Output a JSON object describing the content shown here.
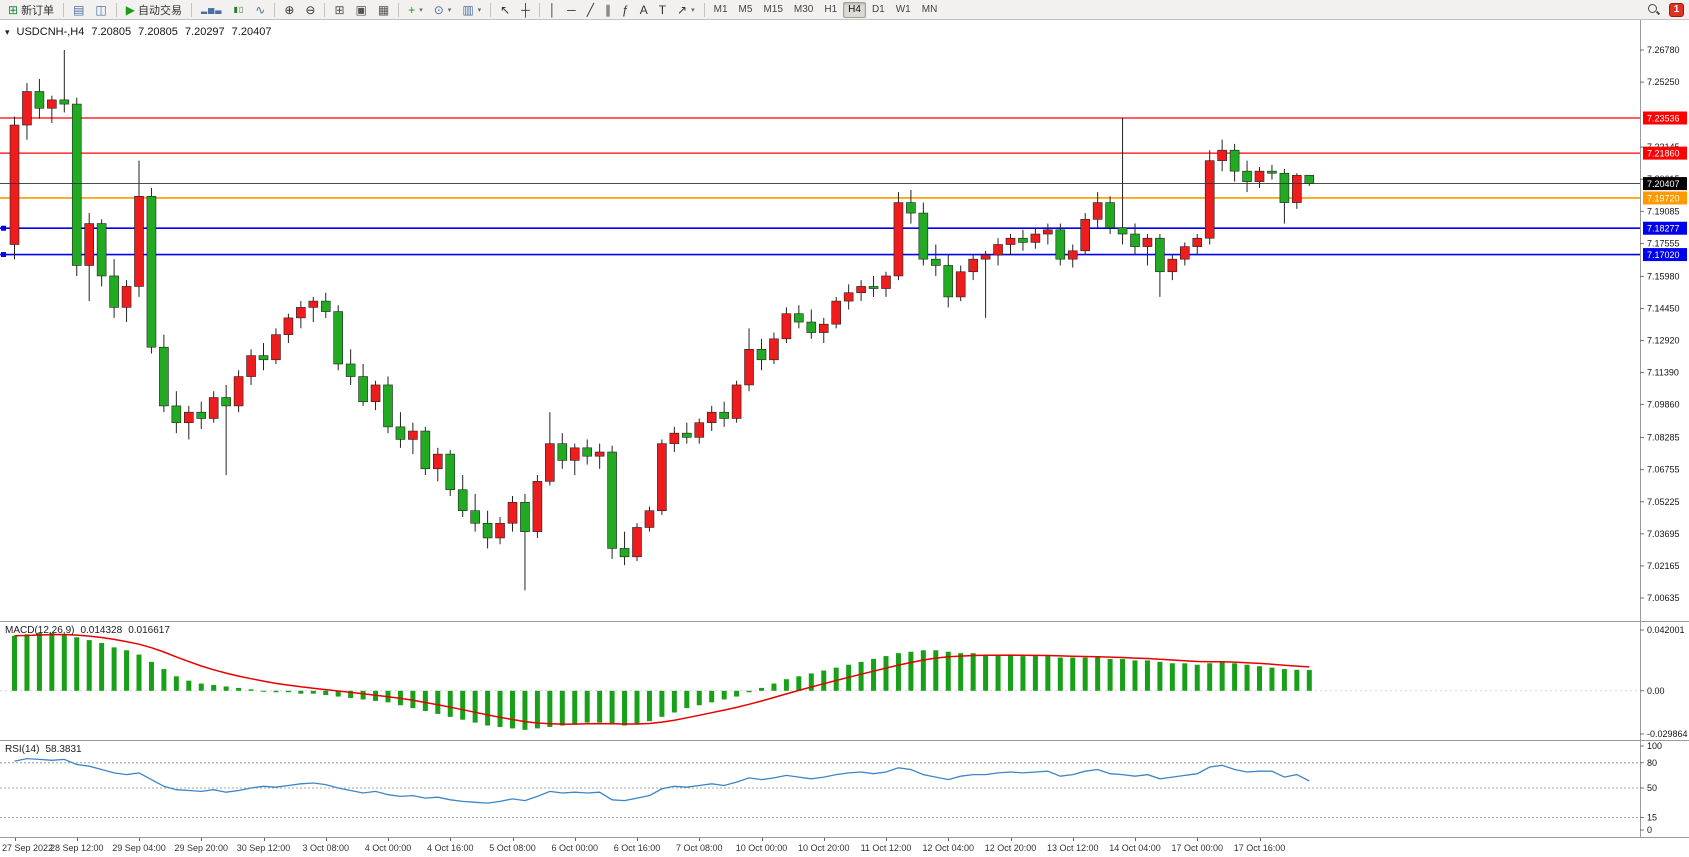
{
  "toolbar": {
    "items": [
      {
        "t": "btn",
        "name": "new-order-button",
        "icon": "new-order-icon",
        "g": "⊞",
        "c": "#1e8e3e",
        "label": "新订单"
      },
      {
        "t": "sep"
      },
      {
        "t": "btn",
        "name": "print-button",
        "icon": "printer-icon",
        "g": "▤",
        "c": "#4a6fa5"
      },
      {
        "t": "btn",
        "name": "print-preview-button",
        "icon": "preview-icon",
        "g": "◫",
        "c": "#4a6fa5"
      },
      {
        "t": "sep"
      },
      {
        "t": "btn",
        "name": "auto-trading-button",
        "icon": "play-icon",
        "g": "▶",
        "c": "#18a018",
        "label": "自动交易"
      },
      {
        "t": "sep"
      },
      {
        "t": "btn",
        "name": "bar-chart-button",
        "icon": "bar-chart-icon",
        "g": "▂▅▃",
        "c": "#4a6fa5",
        "small": true
      },
      {
        "t": "btn",
        "name": "candlestick-chart-button",
        "icon": "candlestick-icon",
        "g": "▮▯",
        "c": "#2a7d2a",
        "small": true
      },
      {
        "t": "btn",
        "name": "line-chart-button",
        "icon": "line-chart-icon",
        "g": "∿",
        "c": "#4a6fa5"
      },
      {
        "t": "sep"
      },
      {
        "t": "btn",
        "name": "zoom-in-button",
        "icon": "zoom-in-icon",
        "g": "⊕",
        "c": "#333333"
      },
      {
        "t": "btn",
        "name": "zoom-out-button",
        "icon": "zoom-out-icon",
        "g": "⊖",
        "c": "#333333"
      },
      {
        "t": "sep"
      },
      {
        "t": "btn",
        "name": "tile-windows-button",
        "icon": "tile-windows-icon",
        "g": "⊞",
        "c": "#555555"
      },
      {
        "t": "btn",
        "name": "cascade-windows-button",
        "icon": "cascade-windows-icon",
        "g": "▣",
        "c": "#555555"
      },
      {
        "t": "btn",
        "name": "arrange-windows-button",
        "icon": "arrange-icon",
        "g": "▦",
        "c": "#555555"
      },
      {
        "t": "sep"
      },
      {
        "t": "btn",
        "name": "new-chart-button",
        "icon": "plus-icon",
        "g": "+",
        "c": "#18a018",
        "dd": true
      },
      {
        "t": "btn",
        "name": "profiles-button",
        "icon": "clock-icon",
        "g": "⊙",
        "c": "#4a6fa5",
        "dd": true
      },
      {
        "t": "btn",
        "name": "templates-button",
        "icon": "template-icon",
        "g": "▥",
        "c": "#4a6fa5",
        "dd": true
      },
      {
        "t": "sep"
      },
      {
        "t": "btn",
        "name": "cursor-button",
        "icon": "cursor-icon",
        "g": "↖",
        "c": "#333333"
      },
      {
        "t": "btn",
        "name": "crosshair-button",
        "icon": "crosshair-icon",
        "g": "┼",
        "c": "#333333"
      },
      {
        "t": "sep"
      },
      {
        "t": "btn",
        "name": "vertical-line-button",
        "icon": "vertical-line-icon",
        "g": "│",
        "c": "#333333"
      },
      {
        "t": "btn",
        "name": "horizontal-line-button",
        "icon": "horizontal-line-icon",
        "g": "─",
        "c": "#333333"
      },
      {
        "t": "btn",
        "name": "trendline-button",
        "icon": "trendline-icon",
        "g": "╱",
        "c": "#333333"
      },
      {
        "t": "btn",
        "name": "channel-button",
        "icon": "channel-icon",
        "g": "∥",
        "c": "#333333"
      },
      {
        "t": "btn",
        "name": "fibonacci-button",
        "icon": "fibonacci-icon",
        "g": "ƒ",
        "c": "#333333"
      },
      {
        "t": "btn",
        "name": "text-button",
        "icon": "text-icon",
        "g": "A",
        "c": "#333333"
      },
      {
        "t": "btn",
        "name": "text-label-button",
        "icon": "label-icon",
        "g": "T",
        "c": "#333333"
      },
      {
        "t": "btn",
        "name": "arrows-button",
        "icon": "arrow-icon",
        "g": "↗",
        "c": "#333333",
        "dd": true
      },
      {
        "t": "sep"
      }
    ],
    "timeframes": [
      "M1",
      "M5",
      "M15",
      "M30",
      "H1",
      "H4",
      "D1",
      "W1",
      "MN"
    ],
    "active_timeframe": "H4",
    "search_icon": "search-icon",
    "notification_count": "1"
  },
  "chart": {
    "collapse_icon": "▾",
    "title": "USDCNH-,H4",
    "ohlc": {
      "open": "7.20805",
      "high": "7.20805",
      "low": "7.20297",
      "close": "7.20407"
    },
    "colors": {
      "bull": "#ee1c1c",
      "bear": "#22aa22",
      "wick": "#222222"
    },
    "price_axis": {
      "max": 7.2678,
      "min": 7.00635,
      "labels": [
        "7.26780",
        "7.25250",
        "7.22145",
        "7.20615",
        "7.19085",
        "7.17555",
        "7.15980",
        "7.14450",
        "7.12920",
        "7.11390",
        "7.09860",
        "7.08285",
        "7.06755",
        "7.05225",
        "7.03695",
        "7.02165",
        "7.00635"
      ]
    },
    "levels": [
      {
        "name": "resistance-line-1",
        "price": 7.23536,
        "label": "7.23536",
        "color": "#ff0000",
        "width": 1.2,
        "handle": false
      },
      {
        "name": "resistance-line-2",
        "price": 7.2186,
        "label": "7.21860",
        "color": "#ff0000",
        "width": 1.2,
        "handle": false
      },
      {
        "name": "pivot-line",
        "price": 7.1972,
        "label": "7.19720",
        "color": "#ff9900",
        "width": 1.6,
        "handle": false
      },
      {
        "name": "support-line-1",
        "price": 7.18277,
        "label": "7.18277",
        "color": "#0000ee",
        "width": 1.6,
        "handle": true
      },
      {
        "name": "support-line-2",
        "price": 7.1702,
        "label": "7.17020",
        "color": "#0000ee",
        "width": 1.6,
        "handle": true
      }
    ],
    "current_price": {
      "price": 7.20407,
      "label": "7.20407",
      "badge_color": "#000000"
    },
    "candles": [
      [
        7.175,
        7.236,
        7.168,
        7.232
      ],
      [
        7.232,
        7.252,
        7.225,
        7.248
      ],
      [
        7.248,
        7.254,
        7.235,
        7.24
      ],
      [
        7.24,
        7.246,
        7.233,
        7.244
      ],
      [
        7.244,
        7.2678,
        7.238,
        7.242
      ],
      [
        7.242,
        7.245,
        7.16,
        7.165
      ],
      [
        7.165,
        7.19,
        7.148,
        7.185
      ],
      [
        7.185,
        7.187,
        7.155,
        7.16
      ],
      [
        7.16,
        7.168,
        7.14,
        7.145
      ],
      [
        7.145,
        7.158,
        7.138,
        7.155
      ],
      [
        7.155,
        7.215,
        7.15,
        7.198
      ],
      [
        7.198,
        7.202,
        7.123,
        7.126
      ],
      [
        7.126,
        7.132,
        7.095,
        7.098
      ],
      [
        7.098,
        7.105,
        7.085,
        7.09
      ],
      [
        7.09,
        7.098,
        7.082,
        7.095
      ],
      [
        7.095,
        7.1,
        7.087,
        7.092
      ],
      [
        7.092,
        7.105,
        7.09,
        7.102
      ],
      [
        7.102,
        7.108,
        7.065,
        7.098
      ],
      [
        7.098,
        7.115,
        7.095,
        7.112
      ],
      [
        7.112,
        7.125,
        7.108,
        7.122
      ],
      [
        7.122,
        7.128,
        7.115,
        7.12
      ],
      [
        7.12,
        7.135,
        7.118,
        7.132
      ],
      [
        7.132,
        7.142,
        7.128,
        7.14
      ],
      [
        7.14,
        7.148,
        7.135,
        7.145
      ],
      [
        7.145,
        7.15,
        7.138,
        7.148
      ],
      [
        7.148,
        7.152,
        7.14,
        7.143
      ],
      [
        7.143,
        7.146,
        7.115,
        7.118
      ],
      [
        7.118,
        7.125,
        7.108,
        7.112
      ],
      [
        7.112,
        7.118,
        7.098,
        7.1
      ],
      [
        7.1,
        7.11,
        7.096,
        7.108
      ],
      [
        7.108,
        7.112,
        7.085,
        7.088
      ],
      [
        7.088,
        7.095,
        7.078,
        7.082
      ],
      [
        7.082,
        7.09,
        7.075,
        7.086
      ],
      [
        7.086,
        7.088,
        7.065,
        7.068
      ],
      [
        7.068,
        7.078,
        7.062,
        7.075
      ],
      [
        7.075,
        7.077,
        7.055,
        7.058
      ],
      [
        7.058,
        7.065,
        7.045,
        7.048
      ],
      [
        7.048,
        7.056,
        7.038,
        7.042
      ],
      [
        7.042,
        7.048,
        7.03,
        7.035
      ],
      [
        7.035,
        7.045,
        7.032,
        7.042
      ],
      [
        7.042,
        7.055,
        7.038,
        7.052
      ],
      [
        7.052,
        7.056,
        7.01,
        7.038
      ],
      [
        7.038,
        7.065,
        7.035,
        7.062
      ],
      [
        7.062,
        7.095,
        7.06,
        7.08
      ],
      [
        7.08,
        7.085,
        7.068,
        7.072
      ],
      [
        7.072,
        7.08,
        7.065,
        7.078
      ],
      [
        7.078,
        7.082,
        7.07,
        7.074
      ],
      [
        7.074,
        7.08,
        7.068,
        7.076
      ],
      [
        7.076,
        7.079,
        7.025,
        7.03
      ],
      [
        7.03,
        7.038,
        7.022,
        7.026
      ],
      [
        7.026,
        7.042,
        7.024,
        7.04
      ],
      [
        7.04,
        7.05,
        7.038,
        7.048
      ],
      [
        7.048,
        7.082,
        7.046,
        7.08
      ],
      [
        7.08,
        7.088,
        7.076,
        7.085
      ],
      [
        7.085,
        7.09,
        7.08,
        7.083
      ],
      [
        7.083,
        7.092,
        7.08,
        7.09
      ],
      [
        7.09,
        7.098,
        7.086,
        7.095
      ],
      [
        7.095,
        7.1,
        7.088,
        7.092
      ],
      [
        7.092,
        7.11,
        7.09,
        7.108
      ],
      [
        7.108,
        7.135,
        7.105,
        7.125
      ],
      [
        7.125,
        7.13,
        7.115,
        7.12
      ],
      [
        7.12,
        7.133,
        7.118,
        7.13
      ],
      [
        7.13,
        7.145,
        7.128,
        7.142
      ],
      [
        7.142,
        7.146,
        7.135,
        7.138
      ],
      [
        7.138,
        7.144,
        7.13,
        7.133
      ],
      [
        7.133,
        7.14,
        7.128,
        7.137
      ],
      [
        7.137,
        7.15,
        7.135,
        7.148
      ],
      [
        7.148,
        7.156,
        7.144,
        7.152
      ],
      [
        7.152,
        7.158,
        7.148,
        7.155
      ],
      [
        7.155,
        7.16,
        7.15,
        7.154
      ],
      [
        7.154,
        7.162,
        7.15,
        7.16
      ],
      [
        7.16,
        7.2,
        7.158,
        7.195
      ],
      [
        7.195,
        7.201,
        7.185,
        7.19
      ],
      [
        7.19,
        7.195,
        7.165,
        7.168
      ],
      [
        7.168,
        7.175,
        7.16,
        7.165
      ],
      [
        7.165,
        7.17,
        7.145,
        7.15
      ],
      [
        7.15,
        7.165,
        7.148,
        7.162
      ],
      [
        7.162,
        7.17,
        7.158,
        7.168
      ],
      [
        7.168,
        7.172,
        7.14,
        7.17
      ],
      [
        7.17,
        7.178,
        7.165,
        7.175
      ],
      [
        7.175,
        7.18,
        7.17,
        7.178
      ],
      [
        7.178,
        7.182,
        7.172,
        7.176
      ],
      [
        7.176,
        7.183,
        7.173,
        7.18
      ],
      [
        7.18,
        7.185,
        7.175,
        7.182
      ],
      [
        7.182,
        7.185,
        7.165,
        7.168
      ],
      [
        7.168,
        7.175,
        7.164,
        7.172
      ],
      [
        7.172,
        7.19,
        7.17,
        7.187
      ],
      [
        7.187,
        7.2,
        7.183,
        7.195
      ],
      [
        7.195,
        7.198,
        7.18,
        7.183
      ],
      [
        7.183,
        7.2355,
        7.175,
        7.18
      ],
      [
        7.18,
        7.185,
        7.17,
        7.174
      ],
      [
        7.174,
        7.18,
        7.165,
        7.178
      ],
      [
        7.178,
        7.18,
        7.15,
        7.162
      ],
      [
        7.162,
        7.17,
        7.158,
        7.168
      ],
      [
        7.168,
        7.176,
        7.165,
        7.174
      ],
      [
        7.174,
        7.18,
        7.17,
        7.178
      ],
      [
        7.178,
        7.22,
        7.175,
        7.215
      ],
      [
        7.215,
        7.225,
        7.21,
        7.22
      ],
      [
        7.22,
        7.223,
        7.205,
        7.21
      ],
      [
        7.21,
        7.215,
        7.2,
        7.205
      ],
      [
        7.205,
        7.212,
        7.202,
        7.21
      ],
      [
        7.21,
        7.213,
        7.206,
        7.209
      ],
      [
        7.209,
        7.211,
        7.185,
        7.195
      ],
      [
        7.195,
        7.209,
        7.192,
        7.208
      ],
      [
        7.20805,
        7.20805,
        7.20297,
        7.20407
      ]
    ]
  },
  "macd": {
    "label": "MACD(12,26,9)",
    "value_main": "0.014328",
    "value_signal": "0.016617",
    "bar_color": "#18a018",
    "signal_color": "#e60000",
    "axis_labels": [
      {
        "text": "0.042001",
        "v": 0.042001
      },
      {
        "text": "0.00",
        "v": 0
      },
      {
        "text": "-0.029864",
        "v": -0.029864
      }
    ],
    "values": [
      0.038,
      0.039,
      0.04,
      0.04,
      0.039,
      0.037,
      0.035,
      0.033,
      0.03,
      0.028,
      0.025,
      0.02,
      0.015,
      0.01,
      0.007,
      0.005,
      0.004,
      0.003,
      0.002,
      0.001,
      0.0,
      -0.001,
      -0.001,
      -0.002,
      -0.002,
      -0.003,
      -0.004,
      -0.005,
      -0.006,
      -0.007,
      -0.008,
      -0.01,
      -0.012,
      -0.014,
      -0.016,
      -0.018,
      -0.02,
      -0.022,
      -0.024,
      -0.025,
      -0.026,
      -0.027,
      -0.026,
      -0.025,
      -0.024,
      -0.023,
      -0.022,
      -0.022,
      -0.023,
      -0.024,
      -0.023,
      -0.021,
      -0.018,
      -0.015,
      -0.012,
      -0.01,
      -0.008,
      -0.006,
      -0.004,
      -0.001,
      0.002,
      0.005,
      0.008,
      0.01,
      0.012,
      0.014,
      0.016,
      0.018,
      0.02,
      0.022,
      0.024,
      0.026,
      0.027,
      0.028,
      0.028,
      0.027,
      0.026,
      0.026,
      0.025,
      0.025,
      0.025,
      0.024,
      0.024,
      0.024,
      0.023,
      0.023,
      0.023,
      0.023,
      0.022,
      0.022,
      0.021,
      0.021,
      0.02,
      0.019,
      0.019,
      0.018,
      0.019,
      0.02,
      0.019,
      0.018,
      0.017,
      0.016,
      0.015,
      0.0145,
      0.014328
    ]
  },
  "rsi": {
    "label": "RSI(14)",
    "value": "58.3831",
    "line_color": "#3d85c8",
    "levels": [
      80,
      50,
      15
    ],
    "axis_labels": [
      {
        "text": "100",
        "v": 100
      },
      {
        "text": "80",
        "v": 80
      },
      {
        "text": "50",
        "v": 50
      },
      {
        "text": "15",
        "v": 15
      },
      {
        "text": "0",
        "v": 0
      }
    ],
    "values": [
      82,
      85,
      84,
      83,
      84,
      78,
      76,
      72,
      68,
      66,
      68,
      60,
      52,
      48,
      47,
      46,
      48,
      45,
      47,
      50,
      52,
      51,
      53,
      55,
      56,
      54,
      50,
      47,
      44,
      46,
      42,
      40,
      41,
      38,
      39,
      36,
      34,
      33,
      32,
      34,
      37,
      35,
      40,
      46,
      44,
      45,
      44,
      45,
      36,
      35,
      38,
      41,
      49,
      52,
      51,
      53,
      55,
      53,
      57,
      62,
      60,
      62,
      65,
      63,
      61,
      63,
      66,
      68,
      69,
      67,
      69,
      74,
      72,
      66,
      63,
      60,
      64,
      66,
      66,
      68,
      69,
      68,
      69,
      70,
      64,
      66,
      70,
      72,
      67,
      66,
      64,
      66,
      61,
      63,
      65,
      67,
      75,
      77,
      72,
      69,
      70,
      70,
      63,
      66,
      58.38
    ],
    "dash_color": "#888888"
  },
  "time_axis": {
    "labels": [
      {
        "text": "27 Sep 2022",
        "i": 0
      },
      {
        "text": "28 Sep 12:00",
        "i": 5
      },
      {
        "text": "29 Sep 04:00",
        "i": 10
      },
      {
        "text": "29 Sep 20:00",
        "i": 15
      },
      {
        "text": "30 Sep 12:00",
        "i": 20
      },
      {
        "text": "3 Oct 08:00",
        "i": 25
      },
      {
        "text": "4 Oct 00:00",
        "i": 30
      },
      {
        "text": "4 Oct 16:00",
        "i": 35
      },
      {
        "text": "5 Oct 08:00",
        "i": 40
      },
      {
        "text": "6 Oct 00:00",
        "i": 45
      },
      {
        "text": "6 Oct 16:00",
        "i": 50
      },
      {
        "text": "7 Oct 08:00",
        "i": 55
      },
      {
        "text": "10 Oct 00:00",
        "i": 60
      },
      {
        "text": "10 Oct 20:00",
        "i": 65
      },
      {
        "text": "11 Oct 12:00",
        "i": 70
      },
      {
        "text": "12 Oct 04:00",
        "i": 75
      },
      {
        "text": "12 Oct 20:00",
        "i": 80
      },
      {
        "text": "13 Oct 12:00",
        "i": 85
      },
      {
        "text": "14 Oct 04:00",
        "i": 90
      },
      {
        "text": "17 Oct 00:00",
        "i": 95
      },
      {
        "text": "17 Oct 16:00",
        "i": 100
      }
    ]
  }
}
